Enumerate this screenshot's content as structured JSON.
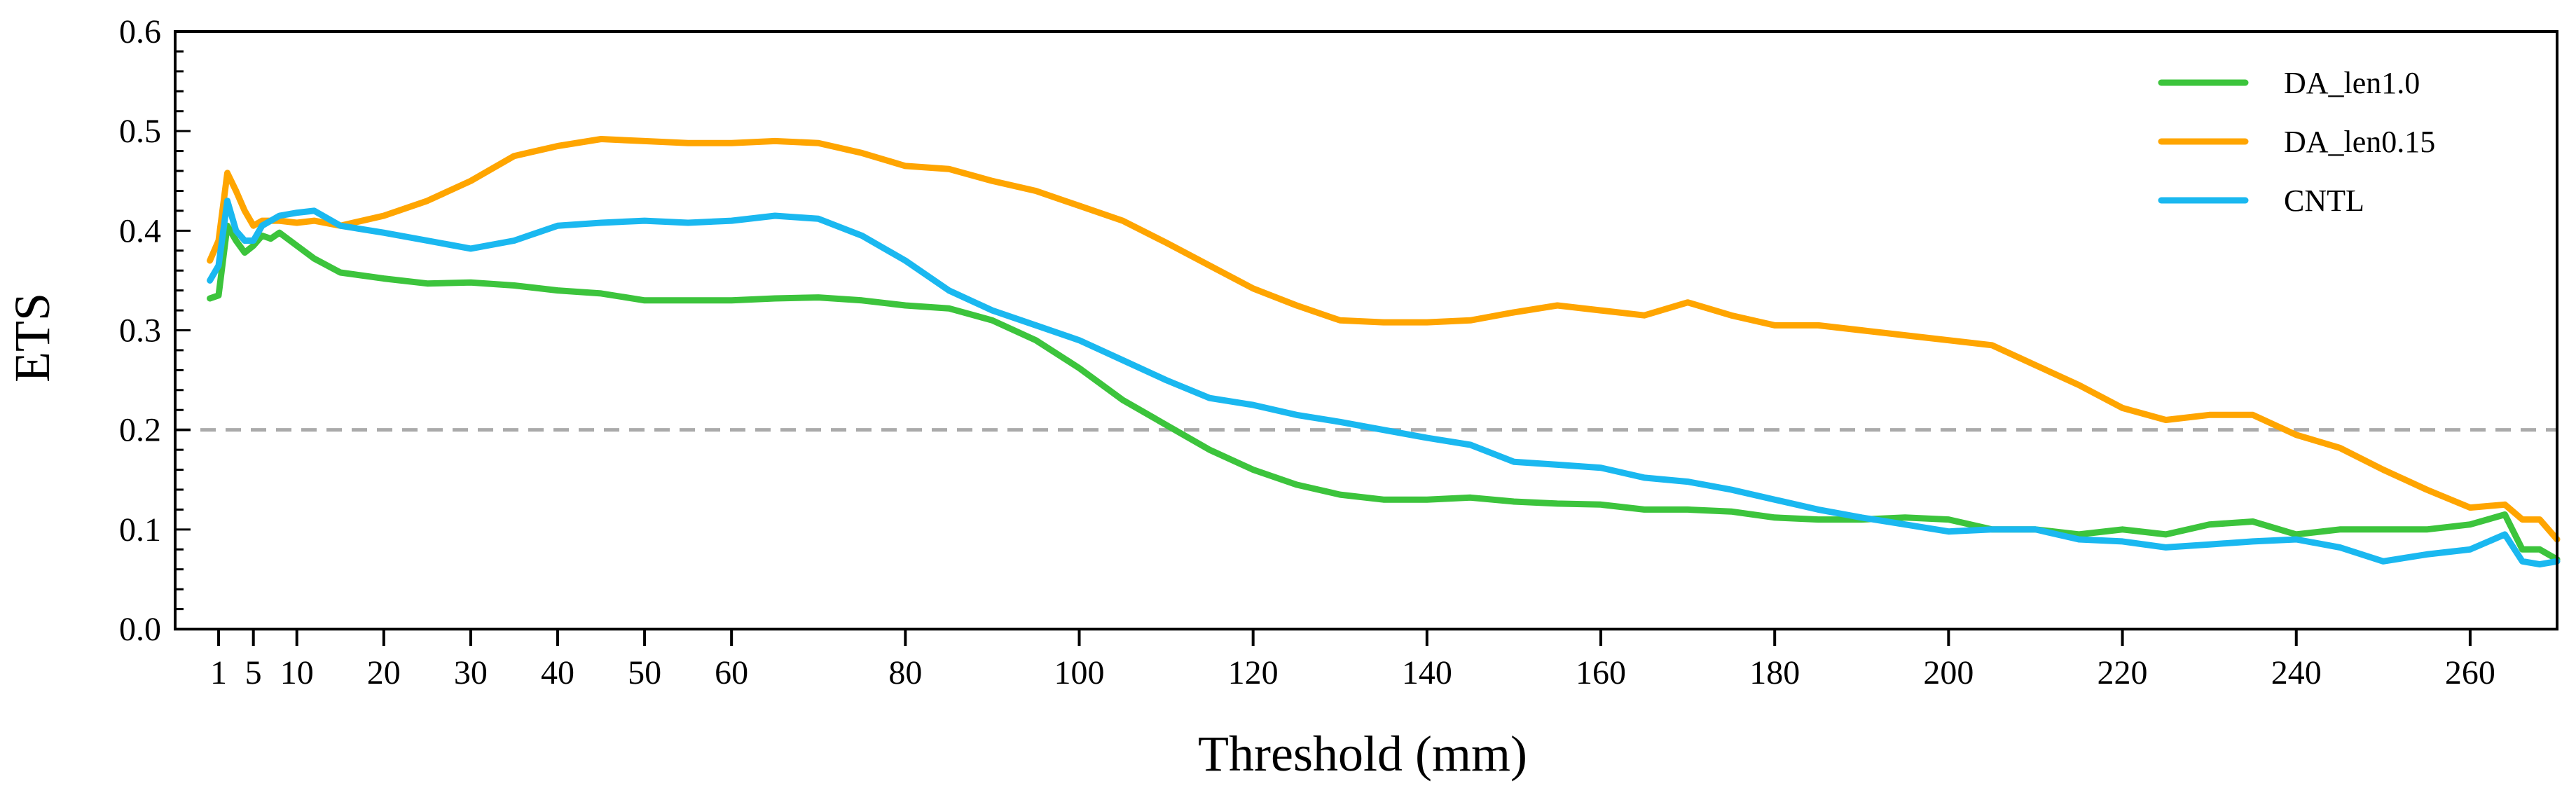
{
  "chart_data": {
    "type": "line",
    "title": "",
    "xlabel": "Threshold (mm)",
    "ylabel": "ETS",
    "xlim": [
      -4,
      270
    ],
    "ylim": [
      0.0,
      0.6
    ],
    "x_ticks": [
      1,
      5,
      10,
      20,
      30,
      40,
      50,
      60,
      80,
      100,
      120,
      140,
      160,
      180,
      200,
      220,
      240,
      260
    ],
    "x_tick_labels": [
      "1",
      "5",
      "10",
      "20",
      "30",
      "40",
      "50",
      "60",
      "80",
      "100",
      "120",
      "140",
      "160",
      "180",
      "200",
      "220",
      "240",
      "260"
    ],
    "y_ticks": [
      0.0,
      0.1,
      0.2,
      0.3,
      0.4,
      0.5,
      0.6
    ],
    "y_tick_labels": [
      "0.0",
      "0.1",
      "0.2",
      "0.3",
      "0.4",
      "0.5",
      "0.6"
    ],
    "legend_position": "top-right",
    "reference_line": {
      "y": 0.2,
      "style": "dashed",
      "color": "#aaaaaa"
    },
    "series": [
      {
        "name": "DA_len1.0",
        "color": "#3cc43c",
        "x": [
          0,
          1,
          2,
          3,
          4,
          5,
          6,
          7,
          8,
          10,
          12,
          15,
          20,
          25,
          30,
          35,
          40,
          45,
          50,
          55,
          60,
          65,
          70,
          75,
          80,
          85,
          90,
          95,
          100,
          105,
          110,
          115,
          120,
          125,
          130,
          135,
          140,
          145,
          150,
          155,
          160,
          165,
          170,
          175,
          180,
          185,
          190,
          195,
          200,
          205,
          210,
          215,
          220,
          225,
          230,
          235,
          240,
          245,
          250,
          255,
          260,
          264,
          266,
          268,
          270
        ],
        "values": [
          0.332,
          0.335,
          0.405,
          0.39,
          0.378,
          0.385,
          0.395,
          0.392,
          0.398,
          0.385,
          0.372,
          0.358,
          0.352,
          0.347,
          0.348,
          0.345,
          0.34,
          0.337,
          0.33,
          0.33,
          0.33,
          0.332,
          0.333,
          0.33,
          0.325,
          0.322,
          0.31,
          0.29,
          0.262,
          0.23,
          0.205,
          0.18,
          0.16,
          0.145,
          0.135,
          0.13,
          0.13,
          0.132,
          0.128,
          0.126,
          0.125,
          0.12,
          0.12,
          0.118,
          0.112,
          0.11,
          0.11,
          0.112,
          0.11,
          0.1,
          0.1,
          0.095,
          0.1,
          0.095,
          0.105,
          0.108,
          0.095,
          0.1,
          0.1,
          0.1,
          0.105,
          0.115,
          0.08,
          0.08,
          0.07
        ]
      },
      {
        "name": "DA_len0.15",
        "color": "#ffa500",
        "x": [
          0,
          1,
          2,
          3,
          4,
          5,
          6,
          7,
          8,
          10,
          12,
          15,
          20,
          25,
          30,
          35,
          40,
          45,
          50,
          55,
          60,
          65,
          70,
          75,
          80,
          85,
          90,
          95,
          100,
          105,
          110,
          115,
          120,
          125,
          130,
          135,
          140,
          145,
          150,
          155,
          160,
          165,
          170,
          175,
          180,
          185,
          190,
          195,
          200,
          205,
          210,
          215,
          220,
          225,
          230,
          235,
          240,
          245,
          250,
          255,
          260,
          264,
          266,
          268,
          270
        ],
        "values": [
          0.37,
          0.39,
          0.458,
          0.44,
          0.42,
          0.405,
          0.41,
          0.41,
          0.41,
          0.408,
          0.41,
          0.405,
          0.415,
          0.43,
          0.45,
          0.475,
          0.485,
          0.492,
          0.49,
          0.488,
          0.488,
          0.49,
          0.488,
          0.478,
          0.465,
          0.462,
          0.45,
          0.44,
          0.425,
          0.41,
          0.388,
          0.365,
          0.342,
          0.325,
          0.31,
          0.308,
          0.308,
          0.31,
          0.318,
          0.325,
          0.32,
          0.315,
          0.328,
          0.315,
          0.305,
          0.305,
          0.3,
          0.295,
          0.29,
          0.285,
          0.265,
          0.245,
          0.222,
          0.21,
          0.215,
          0.215,
          0.195,
          0.182,
          0.16,
          0.14,
          0.122,
          0.125,
          0.11,
          0.11,
          0.09
        ]
      },
      {
        "name": "CNTL",
        "color": "#1ab8f0",
        "x": [
          0,
          1,
          2,
          3,
          4,
          5,
          6,
          7,
          8,
          10,
          12,
          15,
          20,
          25,
          30,
          35,
          40,
          45,
          50,
          55,
          60,
          65,
          70,
          75,
          80,
          85,
          90,
          95,
          100,
          105,
          110,
          115,
          120,
          125,
          130,
          135,
          140,
          145,
          150,
          155,
          160,
          165,
          170,
          175,
          180,
          185,
          190,
          195,
          200,
          205,
          210,
          215,
          220,
          225,
          230,
          235,
          240,
          245,
          250,
          255,
          260,
          264,
          266,
          268,
          270
        ],
        "values": [
          0.35,
          0.365,
          0.43,
          0.4,
          0.39,
          0.39,
          0.405,
          0.41,
          0.415,
          0.418,
          0.42,
          0.405,
          0.398,
          0.39,
          0.382,
          0.39,
          0.405,
          0.408,
          0.41,
          0.408,
          0.41,
          0.415,
          0.412,
          0.395,
          0.37,
          0.34,
          0.32,
          0.305,
          0.29,
          0.27,
          0.25,
          0.232,
          0.225,
          0.215,
          0.208,
          0.2,
          0.192,
          0.185,
          0.168,
          0.165,
          0.162,
          0.152,
          0.148,
          0.14,
          0.13,
          0.12,
          0.112,
          0.105,
          0.098,
          0.1,
          0.1,
          0.09,
          0.088,
          0.082,
          0.085,
          0.088,
          0.09,
          0.082,
          0.068,
          0.075,
          0.08,
          0.095,
          0.068,
          0.065,
          0.068
        ]
      }
    ]
  }
}
